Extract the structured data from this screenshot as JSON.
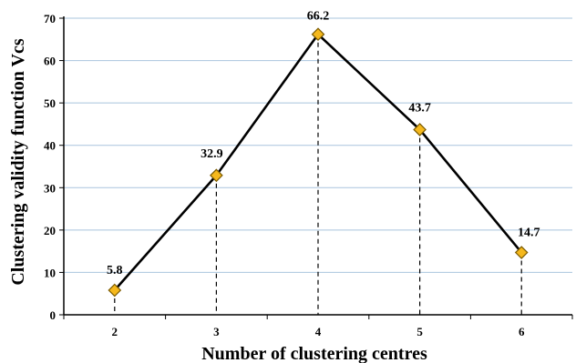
{
  "chart_data": {
    "type": "line",
    "title": "",
    "xlabel": "Number of clustering centres",
    "ylabel": "Clustering validity function Vcs",
    "x": [
      2,
      3,
      4,
      5,
      6
    ],
    "series": [
      {
        "values": [
          5.8,
          32.9,
          66.2,
          43.7,
          14.7
        ]
      }
    ],
    "data_labels": [
      "5.8",
      "32.9",
      "66.2",
      "43.7",
      "14.7"
    ],
    "x_ticks": [
      "2",
      "3",
      "4",
      "5",
      "6"
    ],
    "y_ticks": [
      "0",
      "10",
      "20",
      "30",
      "40",
      "50",
      "60",
      "70"
    ],
    "ylim": [
      0,
      70
    ],
    "xlim": [
      1.5,
      6.5
    ],
    "grid": "horizontal",
    "drop_lines": true,
    "colors": {
      "line": "#000000",
      "marker_fill": "#F5B81C",
      "marker_stroke": "#7a5a00",
      "grid": "#a9c4de",
      "axis": "#000000"
    }
  }
}
